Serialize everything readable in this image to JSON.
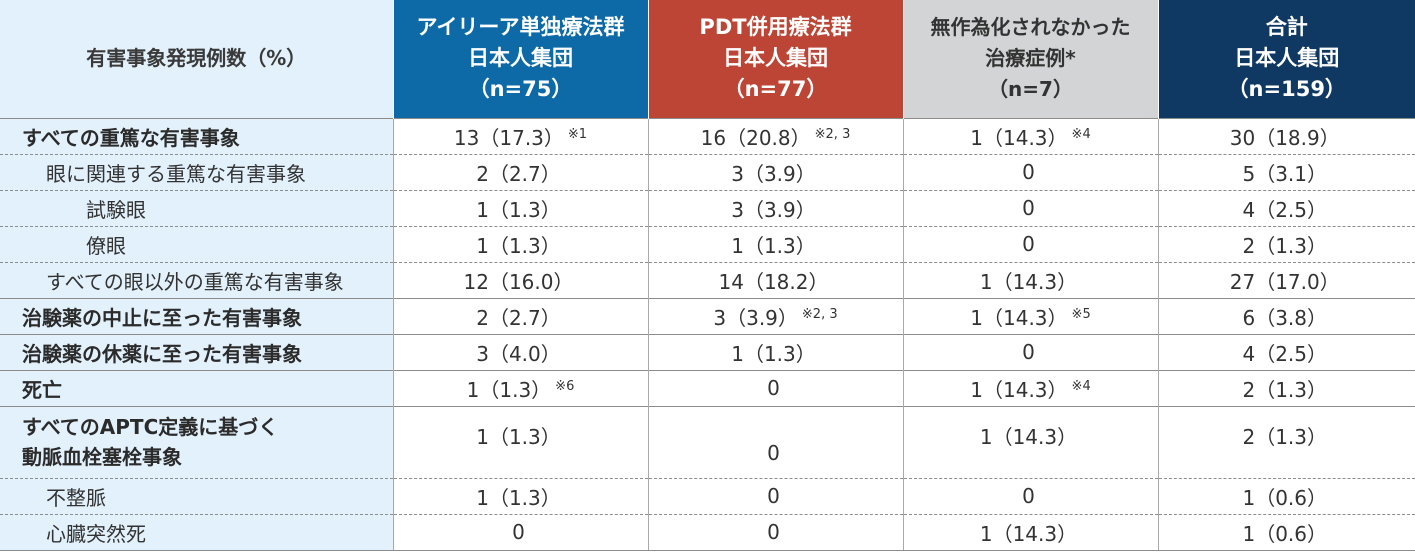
{
  "header": {
    "row_label": "有害事象発現例数（%）",
    "groups": [
      {
        "line1": "アイリーア単独療法群",
        "line2": "日本人集団",
        "line3": "（n=75）",
        "color": "#0e69a7"
      },
      {
        "line1": "PDT併用療法群",
        "line2": "日本人集団",
        "line3": "（n=77）",
        "color": "#bd4536"
      },
      {
        "line1": "無作為化されなかった",
        "line2": "治療症例*",
        "line3": "（n=7）",
        "color": "#d3d4d5"
      },
      {
        "line1": "合計",
        "line2": "日本人集団",
        "line3": "（n=159）",
        "color": "#0f3863"
      }
    ]
  },
  "rows": [
    {
      "label": "すべての重篤な有害事象",
      "cells": [
        {
          "v": "13（17.3）",
          "n": "※1"
        },
        {
          "v": "16（20.8）",
          "n": "※2, 3"
        },
        {
          "v": "1（14.3）",
          "n": "※4"
        },
        {
          "v": "30（18.9）",
          "n": ""
        }
      ]
    },
    {
      "label": "眼に関連する重篤な有害事象",
      "cells": [
        {
          "v": "2（2.7）",
          "n": ""
        },
        {
          "v": "3（3.9）",
          "n": ""
        },
        {
          "v": "0",
          "n": ""
        },
        {
          "v": "5（3.1）",
          "n": ""
        }
      ]
    },
    {
      "label": "試験眼",
      "cells": [
        {
          "v": "1（1.3）",
          "n": ""
        },
        {
          "v": "3（3.9）",
          "n": ""
        },
        {
          "v": "0",
          "n": ""
        },
        {
          "v": "4（2.5）",
          "n": ""
        }
      ]
    },
    {
      "label": "僚眼",
      "cells": [
        {
          "v": "1（1.3）",
          "n": ""
        },
        {
          "v": "1（1.3）",
          "n": ""
        },
        {
          "v": "0",
          "n": ""
        },
        {
          "v": "2（1.3）",
          "n": ""
        }
      ]
    },
    {
      "label": "すべての眼以外の重篤な有害事象",
      "cells": [
        {
          "v": "12（16.0）",
          "n": ""
        },
        {
          "v": "14（18.2）",
          "n": ""
        },
        {
          "v": "1（14.3）",
          "n": ""
        },
        {
          "v": "27（17.0）",
          "n": ""
        }
      ]
    },
    {
      "label": "治験薬の中止に至った有害事象",
      "cells": [
        {
          "v": "2（2.7）",
          "n": ""
        },
        {
          "v": "3（3.9）",
          "n": "※2, 3"
        },
        {
          "v": "1（14.3）",
          "n": "※5"
        },
        {
          "v": "6（3.8）",
          "n": ""
        }
      ]
    },
    {
      "label": "治験薬の休薬に至った有害事象",
      "cells": [
        {
          "v": "3（4.0）",
          "n": ""
        },
        {
          "v": "1（1.3）",
          "n": ""
        },
        {
          "v": "0",
          "n": ""
        },
        {
          "v": "4（2.5）",
          "n": ""
        }
      ]
    },
    {
      "label": "死亡",
      "cells": [
        {
          "v": "1（1.3）",
          "n": "※6"
        },
        {
          "v": "0",
          "n": ""
        },
        {
          "v": "1（14.3）",
          "n": "※4"
        },
        {
          "v": "2（1.3）",
          "n": ""
        }
      ]
    },
    {
      "label1": "すべてのAPTC定義に基づく",
      "label2": "動脈血栓塞栓事象",
      "cells": [
        {
          "v": "1（1.3）",
          "n": ""
        },
        {
          "v": "0",
          "n": ""
        },
        {
          "v": "1（14.3）",
          "n": ""
        },
        {
          "v": "2（1.3）",
          "n": ""
        }
      ]
    },
    {
      "label": "不整脈",
      "cells": [
        {
          "v": "1（1.3）",
          "n": ""
        },
        {
          "v": "0",
          "n": ""
        },
        {
          "v": "0",
          "n": ""
        },
        {
          "v": "1（0.6）",
          "n": ""
        }
      ]
    },
    {
      "label": "心臓突然死",
      "cells": [
        {
          "v": "0",
          "n": ""
        },
        {
          "v": "0",
          "n": ""
        },
        {
          "v": "1（14.3）",
          "n": ""
        },
        {
          "v": "1（0.6）",
          "n": ""
        }
      ]
    }
  ]
}
